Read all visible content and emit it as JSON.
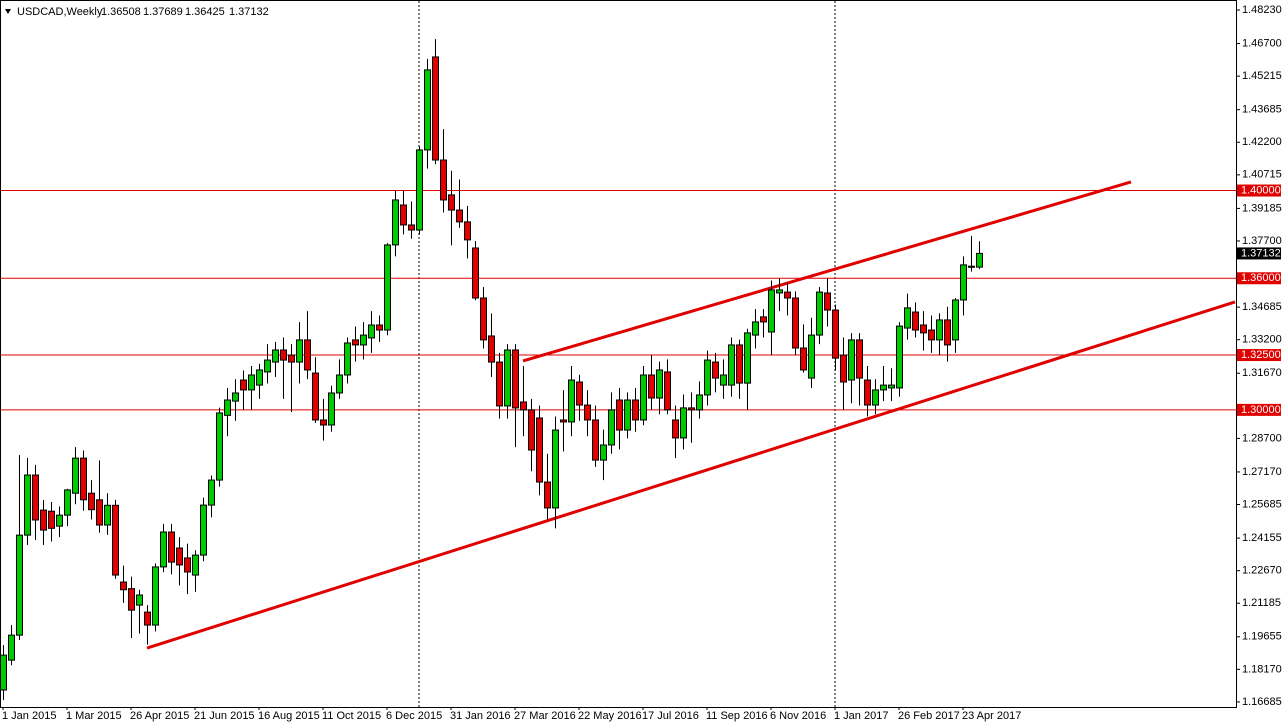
{
  "chart_data": {
    "type": "candlestick",
    "title": "USDCAD,Weekly",
    "categories": [
      "1 Jan 2015",
      null,
      null,
      null,
      null,
      null,
      null,
      null,
      "1 Mar 2015",
      null,
      null,
      null,
      null,
      null,
      null,
      null,
      "26 Apr 2015",
      null,
      null,
      null,
      null,
      null,
      null,
      null,
      "21 Jun 2015",
      null,
      null,
      null,
      null,
      null,
      null,
      null,
      "16 Aug 2015",
      null,
      null,
      null,
      null,
      null,
      null,
      null,
      "11 Oct 2015",
      null,
      null,
      null,
      null,
      null,
      null,
      null,
      "6 Dec 2015",
      null,
      null,
      null,
      null,
      null,
      null,
      null,
      "31 Jan 2016",
      null,
      null,
      null,
      null,
      null,
      null,
      null,
      "27 Mar 2016",
      null,
      null,
      null,
      null,
      null,
      null,
      null,
      "22 May 2016",
      null,
      null,
      null,
      null,
      null,
      null,
      null,
      "17 Jul 2016",
      null,
      null,
      null,
      null,
      null,
      null,
      null,
      "11 Sep 2016",
      null,
      null,
      null,
      null,
      null,
      null,
      null,
      "6 Nov 2016",
      null,
      null,
      null,
      null,
      null,
      null,
      null,
      "1 Jan 2017",
      null,
      null,
      null,
      null,
      null,
      null,
      null,
      "26 Feb 2017",
      null,
      null,
      null,
      null,
      null,
      null,
      null,
      "23 Apr 2017",
      null,
      null
    ],
    "open": [
      1.1723,
      1.1859,
      1.1973,
      1.2429,
      1.2703,
      1.2543,
      1.2538,
      1.247,
      1.252,
      1.262,
      1.278,
      1.262,
      1.259,
      1.2475,
      1.2565,
      1.2215,
      1.2185,
      1.211,
      1.2078,
      1.2019,
      1.2284,
      1.2443,
      1.237,
      1.2325,
      1.2247,
      1.2338,
      1.2566,
      1.268,
      1.2975,
      1.304,
      1.3136,
      1.3091,
      1.3113,
      1.3173,
      1.3218,
      1.3273,
      1.325,
      1.3218,
      1.3319,
      1.3168,
      1.2954,
      1.2931,
      1.3077,
      1.3159,
      1.3319,
      1.3296,
      1.3328,
      1.3387,
      1.3364,
      1.3752,
      1.3934,
      1.3843,
      1.382,
      1.4185,
      1.4609,
      1.4139,
      1.398,
      1.3911,
      1.3857,
      1.3738,
      1.351,
      1.3337,
      1.3218,
      1.3018,
      1.3273,
      1.3036,
      1.3,
      1.2963,
      1.2671,
      1.2553,
      1.2954,
      1.2945,
      1.3127,
      1.3022,
      1.2954,
      1.2771,
      1.284,
      1.3045,
      1.2908,
      1.3045,
      1.2954,
      1.3159,
      1.3054,
      1.3173,
      1.2954,
      1.2872,
      1.3009,
      1.3,
      1.3068,
      1.3218,
      1.3113,
      1.3113,
      1.3296,
      1.3122,
      1.3341,
      1.3424,
      1.3355,
      1.3533,
      1.3537,
      1.351,
      1.3282,
      1.3145,
      1.3341,
      1.3533,
      1.3455,
      1.325,
      1.3136,
      1.3319,
      1.3136,
      1.3022,
      1.3091,
      1.31,
      1.31,
      1.3373,
      1.3446,
      1.3387,
      1.3364,
      1.3319,
      1.341,
      1.3319,
      1.3501,
      1.365,
      1.36508
    ],
    "high": [
      1.1928,
      1.2019,
      1.2794,
      1.2781,
      1.2749,
      1.2589,
      1.258,
      1.256,
      1.264,
      1.283,
      1.2815,
      1.268,
      1.277,
      1.262,
      1.259,
      1.229,
      1.224,
      1.218,
      1.211,
      1.23,
      1.248,
      1.248,
      1.242,
      1.239,
      1.236,
      1.26,
      1.27,
      1.301,
      1.31,
      1.314,
      1.318,
      1.32,
      1.321,
      1.33,
      1.331,
      1.333,
      1.33,
      1.34,
      1.345,
      1.324,
      1.305,
      1.311,
      1.323,
      1.333,
      1.338,
      1.34,
      1.345,
      1.343,
      1.376,
      1.4,
      1.4,
      1.395,
      1.42,
      1.46,
      1.469,
      1.428,
      1.409,
      1.405,
      1.393,
      1.377,
      1.356,
      1.344,
      1.326,
      1.33,
      1.33,
      1.32,
      1.305,
      1.302,
      1.28,
      1.297,
      1.309,
      1.32,
      1.316,
      1.309,
      1.302,
      1.291,
      1.308,
      1.31,
      1.308,
      1.31,
      1.32,
      1.325,
      1.322,
      1.323,
      1.302,
      1.307,
      1.308,
      1.313,
      1.327,
      1.326,
      1.323,
      1.333,
      1.332,
      1.337,
      1.346,
      1.346,
      1.359,
      1.36,
      1.358,
      1.354,
      1.339,
      1.342,
      1.356,
      1.36,
      1.348,
      1.333,
      1.335,
      1.335,
      1.32,
      1.314,
      1.32,
      1.319,
      1.34,
      1.353,
      1.349,
      1.345,
      1.343,
      1.344,
      1.347,
      1.351,
      1.37,
      1.3793,
      1.37689
    ],
    "low": [
      1.1677,
      1.1836,
      1.1951,
      1.2384,
      1.2407,
      1.2384,
      1.24,
      1.242,
      1.247,
      1.257,
      1.254,
      1.25,
      1.244,
      1.243,
      1.223,
      1.212,
      1.196,
      1.198,
      1.193,
      1.199,
      1.226,
      1.225,
      1.22,
      1.216,
      1.217,
      1.231,
      1.251,
      1.265,
      1.288,
      1.295,
      1.3,
      1.3,
      1.305,
      1.312,
      1.315,
      1.305,
      1.299,
      1.312,
      1.314,
      1.294,
      1.286,
      1.29,
      1.305,
      1.312,
      1.322,
      1.323,
      1.326,
      1.331,
      1.334,
      1.37,
      1.38,
      1.378,
      1.38,
      1.41,
      1.412,
      1.39,
      1.375,
      1.383,
      1.369,
      1.35,
      1.328,
      1.315,
      1.296,
      1.296,
      1.283,
      1.288,
      1.272,
      1.261,
      1.25,
      1.246,
      1.281,
      1.288,
      1.295,
      1.288,
      1.274,
      1.268,
      1.28,
      1.282,
      1.287,
      1.29,
      1.293,
      1.3,
      1.298,
      1.298,
      1.278,
      1.282,
      1.285,
      1.296,
      1.302,
      1.308,
      1.305,
      1.306,
      1.305,
      1.3,
      1.328,
      1.333,
      1.325,
      1.345,
      1.343,
      1.325,
      1.317,
      1.31,
      1.33,
      1.338,
      1.318,
      1.3,
      1.303,
      1.302,
      1.297,
      1.298,
      1.304,
      1.304,
      1.306,
      1.332,
      1.333,
      1.327,
      1.326,
      1.325,
      1.322,
      1.326,
      1.343,
      1.363,
      1.36425
    ],
    "close": [
      1.1882,
      1.1973,
      1.2429,
      1.2703,
      1.2498,
      1.2452,
      1.246,
      1.252,
      1.2635,
      1.278,
      1.259,
      1.2545,
      1.2475,
      1.2565,
      1.2247,
      1.218,
      1.2087,
      1.2156,
      1.2019,
      1.2284,
      1.2443,
      1.2306,
      1.2293,
      1.2261,
      1.2338,
      1.2566,
      1.268,
      1.2986,
      1.3045,
      1.3077,
      1.3091,
      1.3159,
      1.3182,
      1.3227,
      1.3273,
      1.3227,
      1.3218,
      1.3319,
      1.3182,
      1.2954,
      1.2931,
      1.3077,
      1.3159,
      1.3305,
      1.3296,
      1.3341,
      1.3387,
      1.3364,
      1.3752,
      1.3957,
      1.3843,
      1.382,
      1.4185,
      1.455,
      1.4139,
      1.3957,
      1.3911,
      1.3857,
      1.3775,
      1.351,
      1.3319,
      1.3218,
      1.3018,
      1.3273,
      1.3009,
      1.3,
      1.2817,
      1.2671,
      1.2553,
      1.2908,
      1.2945,
      1.3136,
      1.3022,
      1.2954,
      1.2771,
      1.284,
      1.3,
      1.2908,
      1.3045,
      1.2954,
      1.3159,
      1.3054,
      1.3182,
      1.3,
      1.2872,
      1.3009,
      1.3,
      1.3068,
      1.3227,
      1.3145,
      1.3159,
      1.3296,
      1.3122,
      1.3351,
      1.3401,
      1.3401,
      1.3547,
      1.3547,
      1.351,
      1.3282,
      1.3182,
      1.3341,
      1.3537,
      1.3455,
      1.3236,
      1.3127,
      1.3319,
      1.3145,
      1.3022,
      1.3091,
      1.3113,
      1.3113,
      1.3382,
      1.3465,
      1.3364,
      1.3351,
      1.3319,
      1.341,
      1.3296,
      1.3501,
      1.3661,
      1.3655,
      1.37132
    ],
    "up_color": "#00c800",
    "down_color": "#e00000",
    "ylim": [
      1.165,
      1.4864
    ],
    "yticks": [
      {
        "value": 1.4823,
        "label": "1.48230"
      },
      {
        "value": 1.467,
        "label": "1.46700"
      },
      {
        "value": 1.45215,
        "label": "1.45215"
      },
      {
        "value": 1.43685,
        "label": "1.43685"
      },
      {
        "value": 1.422,
        "label": "1.42200"
      },
      {
        "value": 1.40715,
        "label": "1.40715"
      },
      {
        "value": 1.39185,
        "label": "1.39185"
      },
      {
        "value": 1.377,
        "label": "1.37700"
      },
      {
        "value": 1.34685,
        "label": "1.34685"
      },
      {
        "value": 1.332,
        "label": "1.33200"
      },
      {
        "value": 1.3167,
        "label": "1.31670"
      },
      {
        "value": 1.287,
        "label": "1.28700"
      },
      {
        "value": 1.2717,
        "label": "1.27170"
      },
      {
        "value": 1.25685,
        "label": "1.25685"
      },
      {
        "value": 1.24155,
        "label": "1.24155"
      },
      {
        "value": 1.2267,
        "label": "1.22670"
      },
      {
        "value": 1.21185,
        "label": "1.21185"
      },
      {
        "value": 1.19655,
        "label": "1.19655"
      },
      {
        "value": 1.1817,
        "label": "1.18170"
      },
      {
        "value": 1.16685,
        "label": "1.16685"
      }
    ],
    "hlines": [
      {
        "value": 1.4,
        "label": "1.40000"
      },
      {
        "value": 1.36,
        "label": "1.36000"
      },
      {
        "value": 1.325,
        "label": "1.32500"
      },
      {
        "value": 1.3,
        "label": "1.30000"
      }
    ],
    "hline_color": "#e00000",
    "trendlines": [
      {
        "x": [
          65,
          141
        ],
        "y": [
          1.3223,
          1.4039
        ]
      },
      {
        "x": [
          18,
          154
        ],
        "y": [
          1.1914,
          1.3492
        ]
      }
    ],
    "period_separators": [
      52,
      104
    ]
  }
}
